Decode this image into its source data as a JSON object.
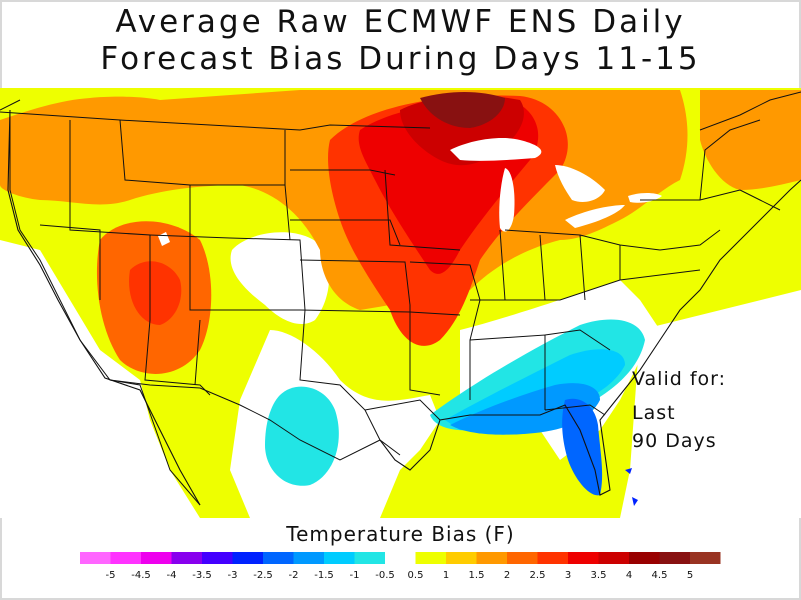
{
  "title": {
    "line1": "Average Raw ECMWF ENS Daily",
    "line2": "Forecast Bias During Days 11-15"
  },
  "annotation": {
    "line1": "Valid for:",
    "line2": "Last",
    "line3": "90 Days"
  },
  "legend": {
    "title": "Temperature Bias (F)",
    "bins": [
      {
        "color": "#ff66ff"
      },
      {
        "color": "#ff33ff"
      },
      {
        "color": "#ee00ee"
      },
      {
        "color": "#8800ee"
      },
      {
        "color": "#4400ff"
      },
      {
        "color": "#0022ff"
      },
      {
        "color": "#0066ff"
      },
      {
        "color": "#0099ff"
      },
      {
        "color": "#00ccff"
      },
      {
        "color": "#22e5e5"
      },
      {
        "color": "#ffffff"
      },
      {
        "color": "#eeff00"
      },
      {
        "color": "#ffcc00"
      },
      {
        "color": "#ff9900"
      },
      {
        "color": "#ff6600"
      },
      {
        "color": "#ff3300"
      },
      {
        "color": "#ee0000"
      },
      {
        "color": "#cc0000"
      },
      {
        "color": "#990000"
      },
      {
        "color": "#881111"
      },
      {
        "color": "#993322"
      }
    ],
    "tick_labels": [
      "-5",
      "-4.5",
      "-4",
      "-3.5",
      "-3",
      "-2.5",
      "-2",
      "-1.5",
      "-1",
      "-0.5",
      "0.5",
      "1",
      "1.5",
      "2",
      "2.5",
      "3",
      "3.5",
      "4",
      "4.5",
      "5"
    ]
  },
  "map": {
    "region": "Contiguous United States",
    "field": "temperature bias",
    "colors": {
      "background": "#ffffff",
      "yellow": "#eeff00",
      "orange_light": "#ffcc00",
      "orange": "#ff9900",
      "orange_dark": "#ff6600",
      "red_orange": "#ff3300",
      "red": "#ee0000",
      "dark_red": "#cc0000",
      "maroon": "#881111",
      "cyan": "#22e5e5",
      "light_blue": "#00ccff",
      "blue": "#0099ff",
      "blue_dark": "#0066ff",
      "blue_deep": "#0022ff",
      "border": "#111111"
    }
  }
}
